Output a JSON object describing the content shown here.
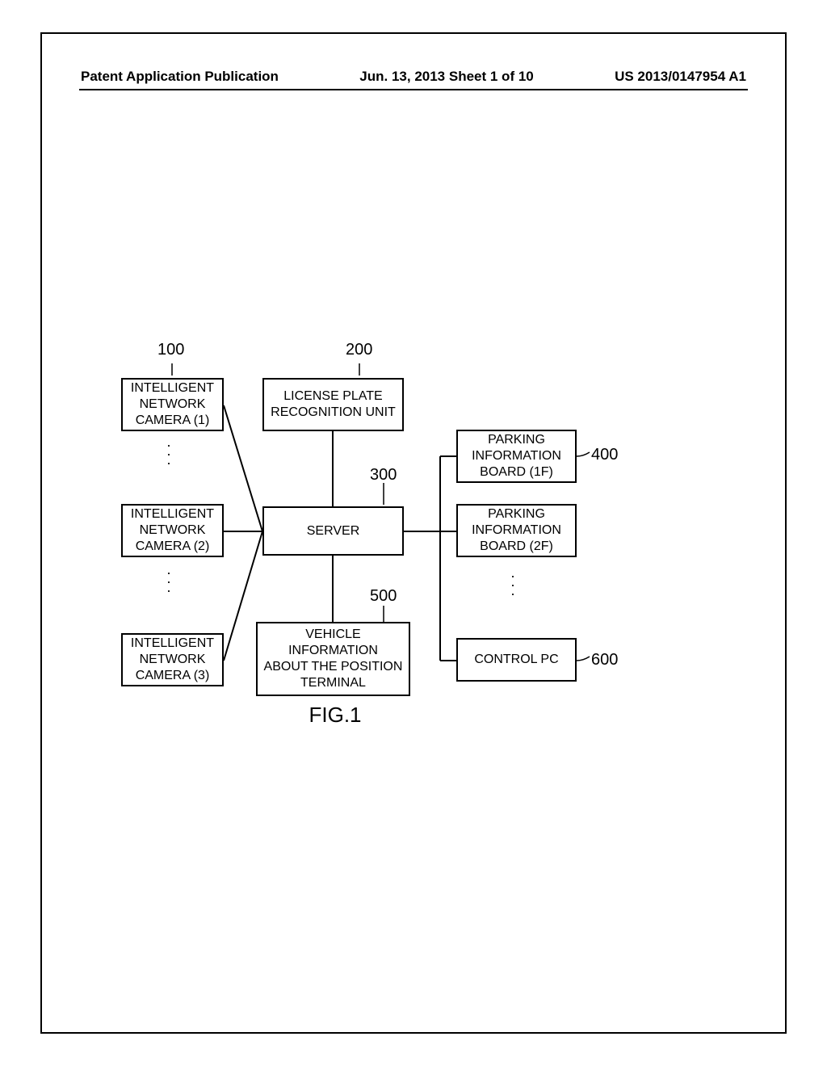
{
  "header": {
    "left": "Patent Application Publication",
    "mid": "Jun. 13, 2013  Sheet 1 of 10",
    "right": "US 2013/0147954 A1"
  },
  "figure_label": "FIG.1",
  "refs": {
    "camera": "100",
    "lpr": "200",
    "server": "300",
    "board1": "400",
    "terminal": "500",
    "control": "600"
  },
  "boxes": {
    "cam1": "INTELLIGENT\nNETWORK\nCAMERA (1)",
    "cam2": "INTELLIGENT\nNETWORK\nCAMERA (2)",
    "cam3": "INTELLIGENT\nNETWORK\nCAMERA (3)",
    "lpr": "LICENSE PLATE\nRECOGNITION UNIT",
    "server": "SERVER",
    "terminal": "VEHICLE\nINFORMATION\nABOUT THE POSITION\nTERMINAL",
    "board1": "PARKING\nINFORMATION\nBOARD (1F)",
    "board2": "PARKING\nINFORMATION\nBOARD (2F)",
    "control": "CONTROL PC"
  },
  "colors": {
    "border": "#000000",
    "bg": "#ffffff",
    "text": "#000000"
  },
  "layout": {
    "box_border_width": 2,
    "font_size_box": 16,
    "font_size_ref": 20,
    "font_size_fig": 26
  }
}
